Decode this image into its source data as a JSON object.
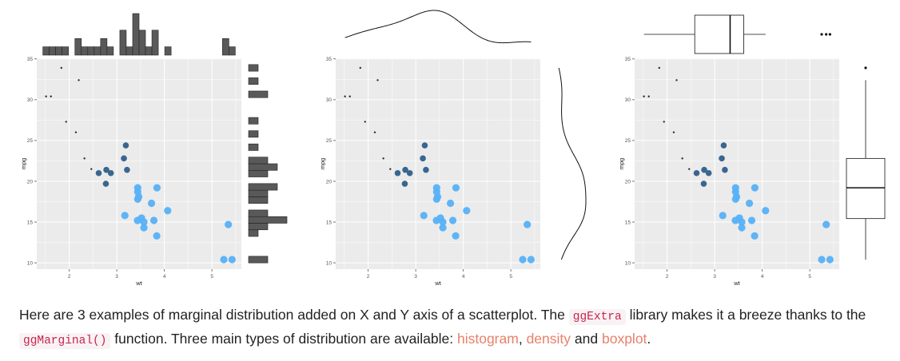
{
  "chart_data": [
    {
      "type": "scatter",
      "marginal": "histogram",
      "xlabel": "wt",
      "ylabel": "mpg",
      "xlim": [
        1.513,
        5.424
      ],
      "ylim": [
        10.4,
        33.9
      ],
      "x_ticks": [
        2,
        3,
        4,
        5
      ],
      "y_ticks": [
        10,
        15,
        20,
        25,
        30,
        35
      ],
      "grid": true,
      "x": [
        2.62,
        2.875,
        2.32,
        3.215,
        3.44,
        3.46,
        3.57,
        3.19,
        3.15,
        3.44,
        3.44,
        4.07,
        3.73,
        3.78,
        5.25,
        5.424,
        5.345,
        2.2,
        1.615,
        1.835,
        2.465,
        3.52,
        3.435,
        3.84,
        3.845,
        1.935,
        2.14,
        1.513,
        3.17,
        2.77,
        3.57,
        2.78
      ],
      "y": [
        21,
        21,
        22.8,
        21.4,
        18.7,
        18.1,
        14.3,
        24.4,
        22.8,
        19.2,
        17.8,
        16.4,
        17.3,
        15.2,
        10.4,
        10.4,
        14.7,
        32.4,
        30.4,
        33.9,
        21.5,
        15.5,
        15.2,
        13.3,
        19.2,
        27.3,
        26,
        30.4,
        15.8,
        19.7,
        15,
        21.4
      ]
    },
    {
      "type": "scatter",
      "marginal": "density",
      "xlabel": "wt",
      "ylabel": "mpg",
      "xlim": [
        1.513,
        5.424
      ],
      "ylim": [
        10.4,
        33.9
      ],
      "x_ticks": [
        2,
        3,
        4,
        5
      ],
      "y_ticks": [
        10,
        15,
        20,
        25,
        30,
        35
      ],
      "grid": true
    },
    {
      "type": "scatter",
      "marginal": "boxplot",
      "xlabel": "wt",
      "ylabel": "mpg",
      "xlim": [
        1.513,
        5.424
      ],
      "ylim": [
        10.4,
        33.9
      ],
      "x_ticks": [
        2,
        3,
        4,
        5
      ],
      "y_ticks": [
        10,
        15,
        20,
        25,
        30,
        35
      ],
      "grid": true
    }
  ],
  "colors": {
    "panel_bg": "#ebebeb",
    "grid": "#ffffff",
    "point_dark": "#2f5f8a",
    "point_light": "#56b1f7",
    "hist_fill": "#595959",
    "link": "#e8806a",
    "code_text": "#c7254e",
    "code_bg": "#f9f2f4"
  },
  "text": {
    "p1": "Here are 3 examples of marginal distribution added on X and Y axis of a scatterplot. The",
    "code1": "ggExtra",
    "p2": "library makes it a breeze thanks to the",
    "code2": "ggMarginal()",
    "p3": "function. Three main types of distribution are available:",
    "link1": "histogram",
    "sep": ",",
    "link2": "density",
    "and": "and",
    "link3": "boxplot",
    "end": "."
  }
}
